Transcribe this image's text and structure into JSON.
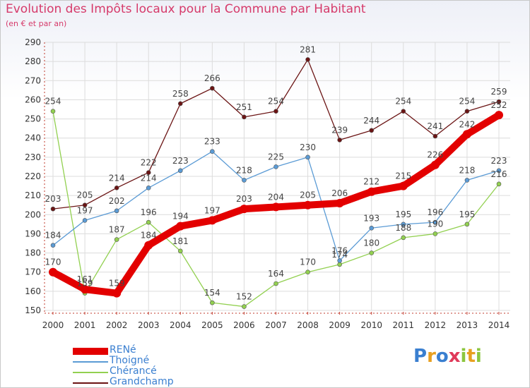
{
  "title": "Evolution des Impôts locaux pour la Commune par Habitant",
  "subtitle": "(en € et par an)",
  "logo": {
    "letters": [
      "P",
      "r",
      "o",
      "x",
      "i",
      "t",
      "i"
    ],
    "colors": [
      "#3a7fd0",
      "#e8a020",
      "#3a7fd0",
      "#e03a5a",
      "#8cc63f",
      "#e8a020",
      "#8cc63f"
    ]
  },
  "chart_data": {
    "type": "line",
    "title": "Evolution des Impôts locaux pour la Commune par Habitant",
    "subtitle": "(en € et par an)",
    "xlabel": "",
    "ylabel": "",
    "ylim": [
      150,
      290
    ],
    "yticks": [
      150,
      160,
      170,
      180,
      190,
      200,
      210,
      220,
      230,
      240,
      250,
      260,
      270,
      280,
      290
    ],
    "grid": true,
    "legend_position": "bottom-left",
    "categories": [
      "2000",
      "2001",
      "2002",
      "2003",
      "2004",
      "2005",
      "2006",
      "2007",
      "2008",
      "2009",
      "2010",
      "2011",
      "2012",
      "2013",
      "2014"
    ],
    "series": [
      {
        "name": "RENé",
        "color": "#e30000",
        "values": [
          170,
          161,
          159,
          184,
          194,
          197,
          203,
          204,
          205,
          206,
          212,
          215,
          226,
          242,
          252
        ]
      },
      {
        "name": "Thoigné",
        "color": "#5b9bd5",
        "values": [
          184,
          197,
          202,
          214,
          223,
          233,
          218,
          225,
          230,
          176,
          193,
          195,
          196,
          218,
          223
        ]
      },
      {
        "name": "Chérancé",
        "color": "#92d050",
        "values": [
          254,
          159,
          187,
          196,
          181,
          154,
          152,
          164,
          170,
          174,
          180,
          188,
          190,
          195,
          216
        ]
      },
      {
        "name": "Grandchamp",
        "color": "#6b1414",
        "values": [
          203,
          205,
          214,
          222,
          258,
          266,
          251,
          254,
          281,
          239,
          244,
          254,
          241,
          254,
          259
        ]
      }
    ],
    "value_labels": [
      [
        "170",
        "161",
        "159",
        "184",
        "194",
        "197",
        "203",
        "204",
        "205",
        "206",
        "212",
        "215",
        "226",
        "242",
        "252"
      ],
      [
        "184",
        "197",
        "202",
        "214",
        "223",
        "233",
        "218",
        "225",
        "230",
        "176",
        "193",
        "195",
        "196",
        "218",
        "223"
      ],
      [
        "254",
        "159",
        "187",
        "196",
        "181",
        "154",
        "152",
        "164",
        "170",
        "174",
        "180",
        "188",
        "190",
        "195",
        "216"
      ],
      [
        "203",
        "205",
        "214",
        "222",
        "258",
        "266",
        "251",
        "254",
        "281",
        "239",
        "244",
        "254",
        "241",
        "254",
        "259"
      ]
    ]
  }
}
